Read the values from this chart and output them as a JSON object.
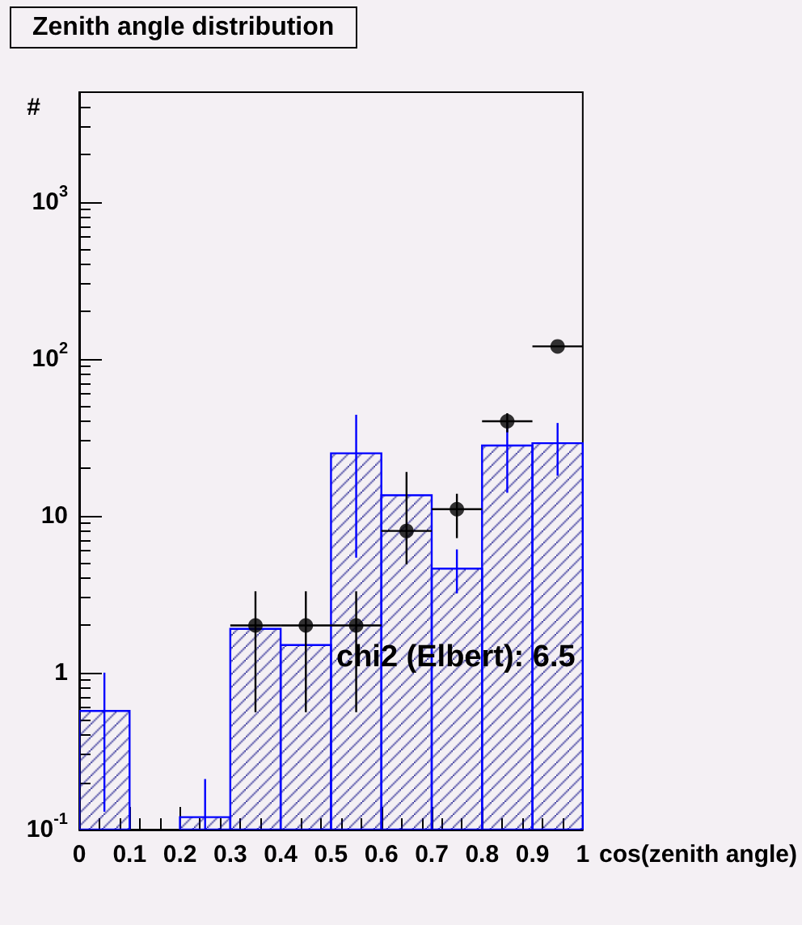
{
  "chart_data": {
    "type": "histogram",
    "title": "Zenith angle distribution",
    "xlabel": "cos(zenith angle)",
    "ylabel": "#",
    "annotations": [
      "chi2 (Elbert): 6.5"
    ],
    "log": "y",
    "grid": false,
    "marker": "circle",
    "xlim": [
      0,
      1
    ],
    "xticks": [
      0,
      0.1,
      0.2,
      0.3,
      0.4,
      0.5,
      0.6,
      0.7,
      0.8,
      0.9,
      1
    ],
    "ylim": [
      0.1,
      5000
    ],
    "yticks": [
      {
        "value": 0.1,
        "label": "10$^{-1}$"
      },
      1,
      10,
      {
        "value": 100,
        "label": "10$^{2}$"
      },
      {
        "value": 1000,
        "label": "10$^{3}$"
      }
    ],
    "series": [
      {
        "color": "#0000ff",
        "bins": [
          0,
          0.1,
          0.2,
          0.3,
          0.4,
          0.5,
          0.6,
          0.7,
          0.8,
          0.9,
          1
        ],
        "values": [
          0.57,
          null,
          0.12,
          1.9,
          1.5,
          25,
          13.5,
          4.6,
          28,
          29
        ],
        "errors": [
          [
            0.13,
            1.0
          ],
          null,
          [
            0.1,
            0.21
          ],
          null,
          null,
          [
            5.4,
            44
          ],
          null,
          [
            3.2,
            6.1
          ],
          [
            14,
            40
          ],
          [
            18,
            39
          ]
        ]
      },
      {
        "type": "scatter",
        "color": "#000000",
        "x": [
          0.35,
          0.45,
          0.55,
          0.65,
          0.75,
          0.85,
          0.95
        ],
        "values": [
          2,
          2,
          2,
          8,
          11,
          40,
          120
        ],
        "errors": [
          [
            0.56,
            3.3
          ],
          [
            0.56,
            3.3
          ],
          [
            0.56,
            3.3
          ],
          [
            4.9,
            19
          ],
          [
            7.2,
            13.8
          ],
          [
            34,
            45
          ],
          null
        ],
        "xerrors": [
          0.05,
          0.05,
          0.05,
          0.05,
          0.05,
          0.05,
          0.05
        ]
      }
    ]
  }
}
